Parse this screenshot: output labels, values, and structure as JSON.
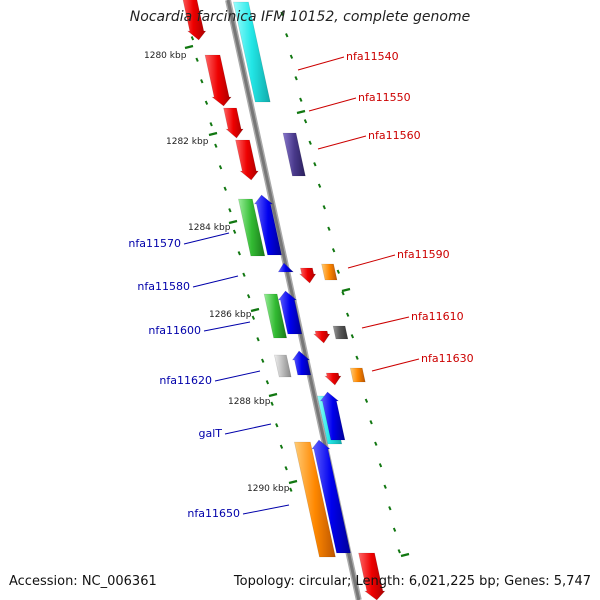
{
  "title": "Nocardia farcinica IFM 10152, complete genome",
  "accession": "Accession: NC_006361",
  "topology": "Topology: circular; Length: 6,021,225 bp; Genes: 5,747",
  "kbp_labels": [
    "1280 kbp",
    "1282 kbp",
    "1284 kbp",
    "1286 kbp",
    "1288 kbp",
    "1290 kbp"
  ],
  "genes_right": [
    "nfa11540",
    "nfa11550",
    "nfa11560",
    "nfa11590",
    "nfa11610",
    "nfa11630"
  ],
  "genes_left": [
    "nfa11570",
    "nfa11580",
    "nfa11600",
    "nfa11620",
    "galT",
    "nfa11650"
  ],
  "colors": {
    "red": "#ee0000",
    "cyan": "#22e6e6",
    "navy": "#4a3a8c",
    "green": "#33bb33",
    "blue": "#0000ee",
    "orange": "#ff8800",
    "gray": "#bbbbbb",
    "darkgray": "#555555",
    "tick": "#117711",
    "label_right": "#cc0000",
    "label_left": "#0000aa"
  }
}
